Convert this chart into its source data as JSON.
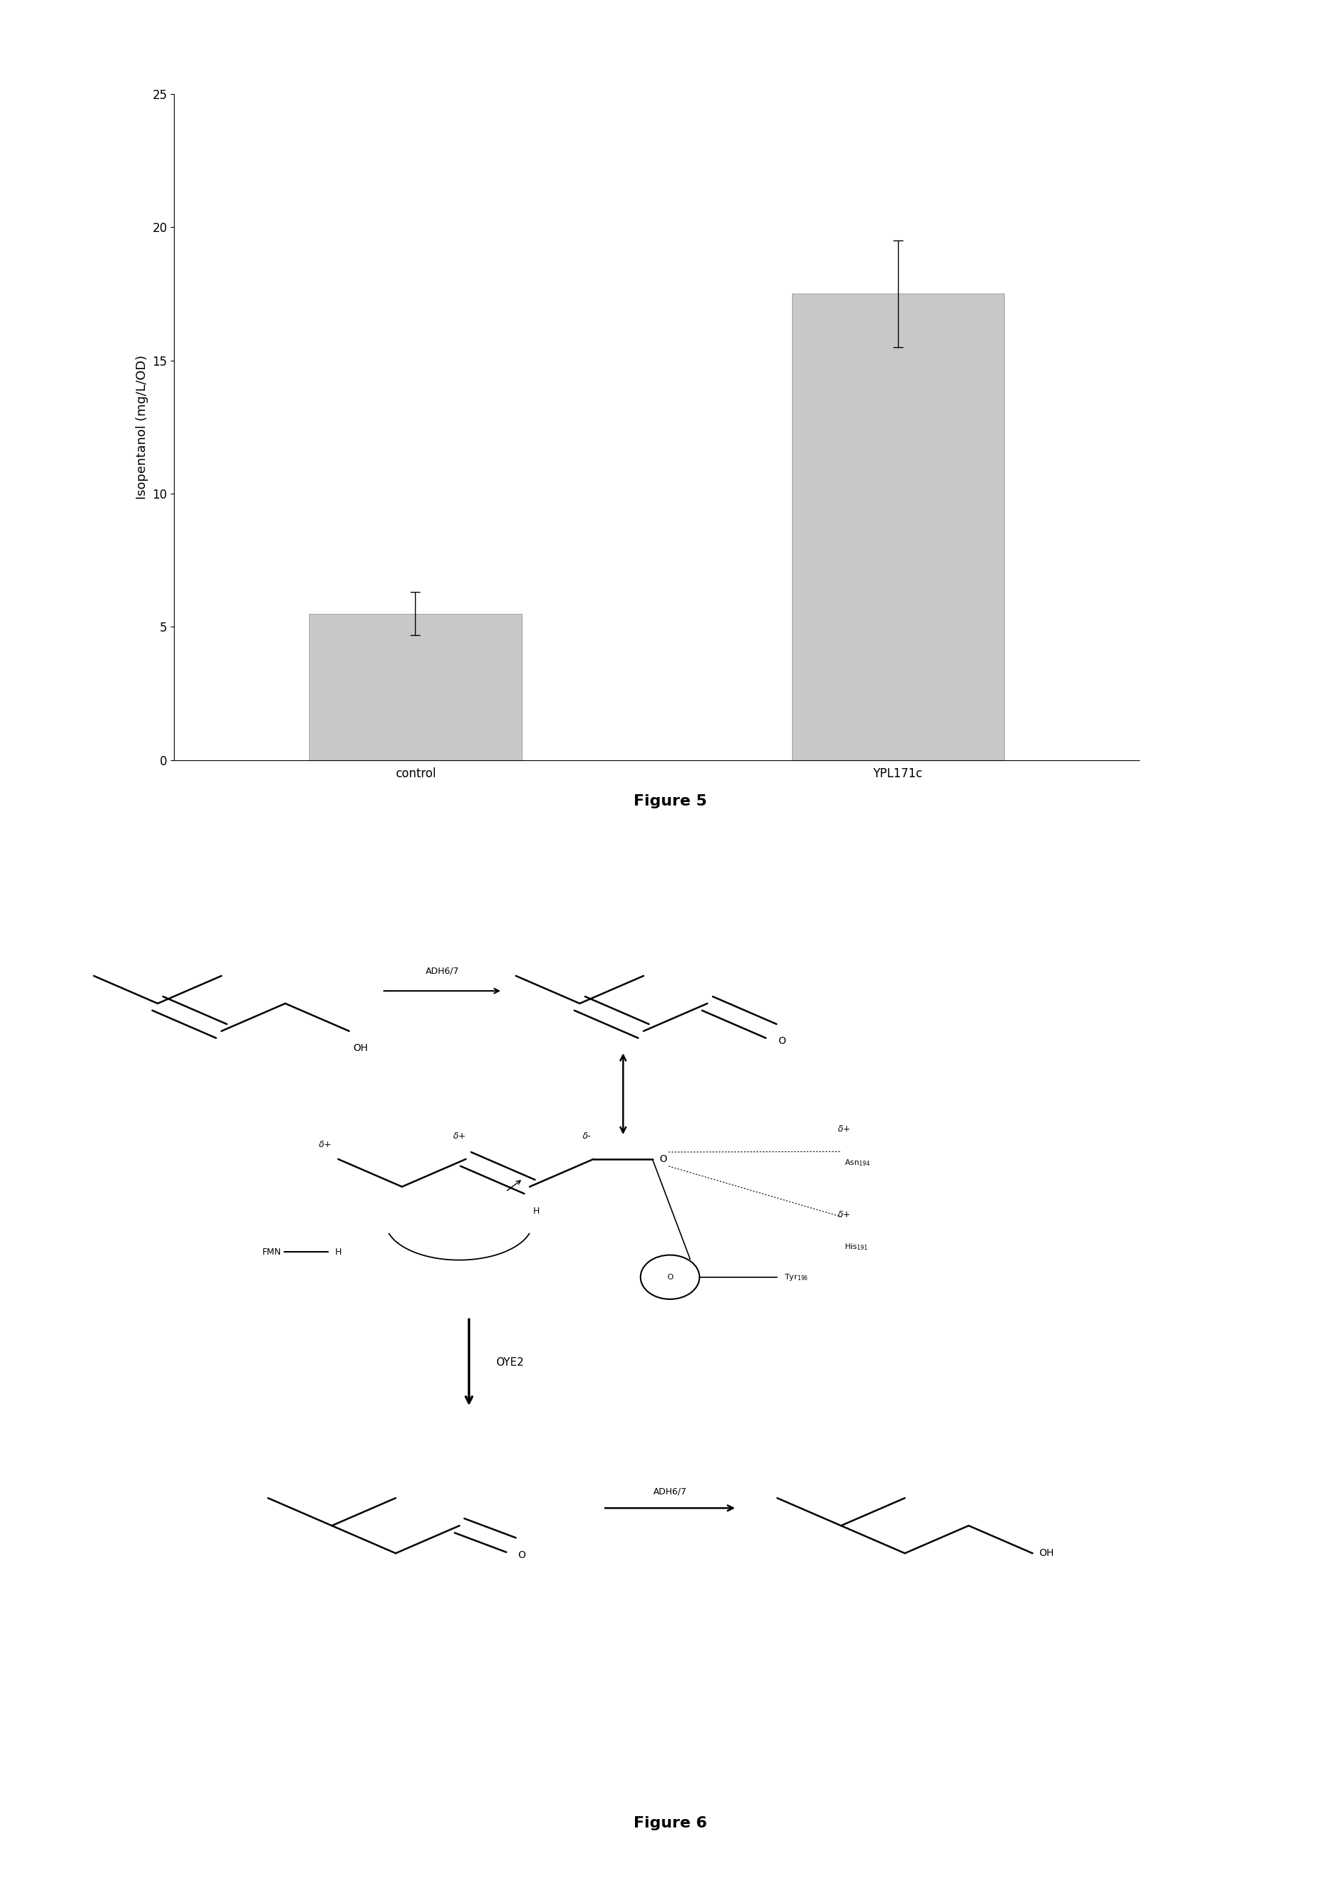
{
  "bar_categories": [
    "control",
    "YPL171c"
  ],
  "bar_values": [
    5.5,
    17.5
  ],
  "bar_errors": [
    0.8,
    2.0
  ],
  "bar_color": "#c8c8c8",
  "ylabel": "Isopentanol (mg/L/OD)",
  "ylim": [
    0,
    25
  ],
  "yticks": [
    0,
    5,
    10,
    15,
    20,
    25
  ],
  "figure5_label": "Figure 5",
  "figure6_label": "Figure 6",
  "background_color": "#ffffff",
  "label_fontsize": 16,
  "axis_fontsize": 13,
  "tick_fontsize": 12,
  "fig_width": 18.95,
  "fig_height": 26.54
}
